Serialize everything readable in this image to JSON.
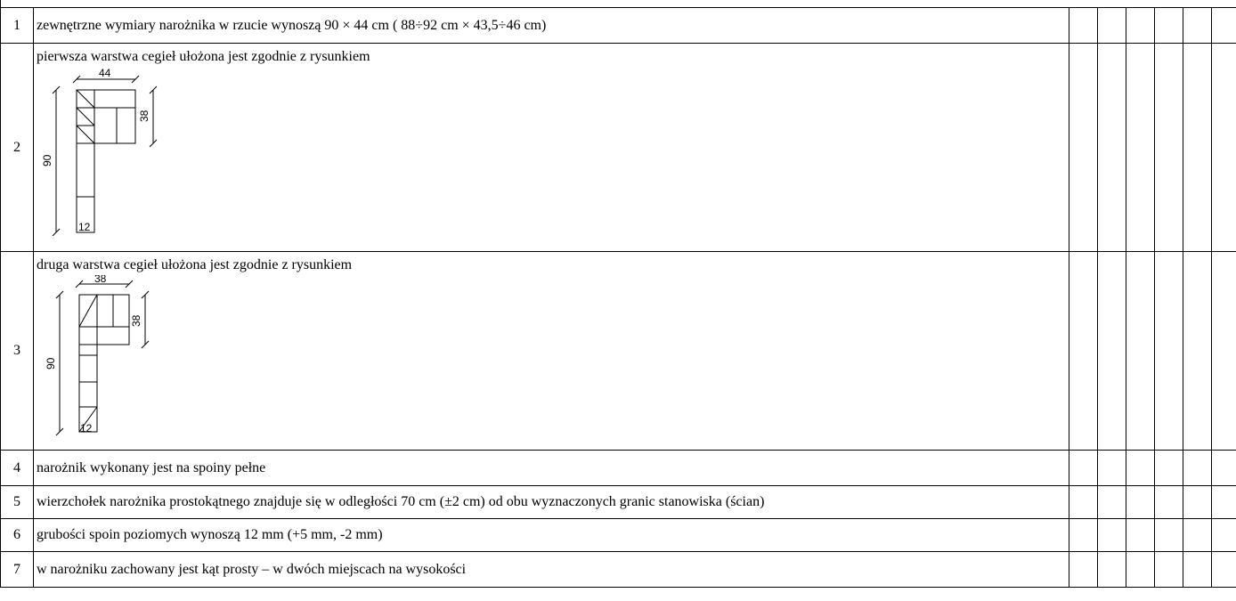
{
  "rows": [
    {
      "number": "1",
      "text": "zewnętrzne wymiary narożnika w rzucie wynoszą 90 × 44 cm ( 88÷92 cm × 43,5÷46 cm)"
    },
    {
      "number": "2",
      "text": "pierwsza warstwa cegieł ułożona jest zgodnie z rysunkiem",
      "drawing": {
        "dim_top": "44",
        "dim_left": "90",
        "dim_right": "38",
        "dim_bottom": "12"
      }
    },
    {
      "number": "3",
      "text": "druga warstwa cegieł ułożona jest zgodnie z rysunkiem",
      "drawing": {
        "dim_top": "38",
        "dim_left": "90",
        "dim_right": "38",
        "dim_bottom": "12"
      }
    },
    {
      "number": "4",
      "text": "narożnik wykonany jest na spoiny pełne"
    },
    {
      "number": "5",
      "text": "wierzchołek narożnika prostokątnego znajduje się w odległości 70 cm (±2 cm) od obu wyznaczonych granic stanowiska (ścian)"
    },
    {
      "number": "6",
      "text": "grubości spoin poziomych wynoszą 12 mm (+5 mm, -2 mm)"
    },
    {
      "number": "7",
      "text": "w narożniku zachowany jest kąt prosty – w dwóch miejscach na wysokości"
    }
  ]
}
